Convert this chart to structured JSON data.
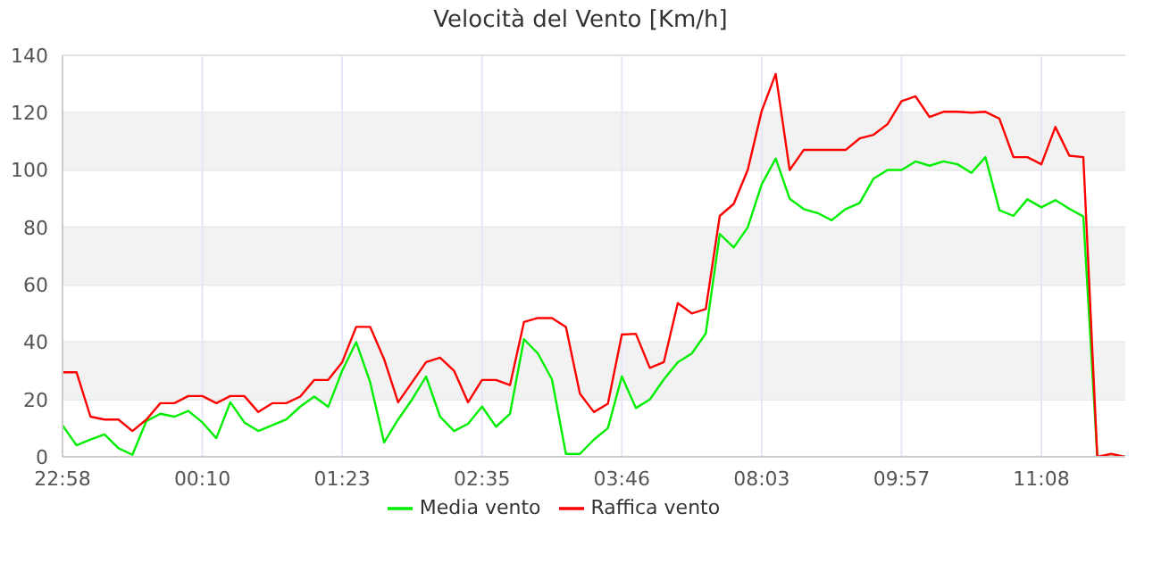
{
  "chart_data": {
    "type": "line",
    "title": "Velocità del Vento [Km/h]",
    "categories": [
      "22:58",
      null,
      null,
      null,
      null,
      null,
      null,
      null,
      null,
      null,
      "00:10",
      null,
      null,
      null,
      null,
      null,
      null,
      null,
      null,
      null,
      "01:23",
      null,
      null,
      null,
      null,
      null,
      null,
      null,
      null,
      null,
      "02:35",
      null,
      null,
      null,
      null,
      null,
      null,
      null,
      null,
      null,
      "03:46",
      null,
      null,
      null,
      null,
      null,
      null,
      null,
      null,
      null,
      "08:03",
      null,
      null,
      null,
      null,
      null,
      null,
      null,
      null,
      null,
      "09:57",
      null,
      null,
      null,
      null,
      null,
      null,
      null,
      null,
      null,
      "11:08",
      null,
      null,
      null,
      null,
      null,
      null
    ],
    "series": [
      {
        "name": "Media vento",
        "color": "#00ee00",
        "values": [
          11,
          4,
          6,
          7.8,
          3,
          0.7,
          12.5,
          15,
          14,
          16,
          12,
          6.5,
          19,
          12,
          9,
          11,
          13,
          17.5,
          21,
          17.4,
          30,
          40,
          26,
          5,
          13,
          20,
          28,
          14,
          9,
          11.5,
          17.5,
          10.5,
          15,
          41,
          36,
          27,
          1,
          1,
          6,
          10,
          28,
          17,
          20,
          27,
          33,
          36,
          43,
          77.7,
          73,
          80,
          95,
          104,
          90,
          86.4,
          85,
          82.5,
          86.4,
          88.5,
          97,
          100,
          100,
          103,
          101.5,
          103,
          102,
          99,
          104.5,
          86,
          84,
          89.8,
          87,
          89.5,
          86.5,
          83.8,
          0,
          0,
          0
        ]
      },
      {
        "name": "Raffica vento",
        "color": "#ff0000",
        "values": [
          29.5,
          29.5,
          14,
          13,
          13,
          9,
          13,
          18.7,
          18.7,
          21.2,
          21.2,
          18.7,
          21.2,
          21.2,
          15.6,
          18.7,
          18.7,
          21,
          26.8,
          26.8,
          33,
          45.3,
          45.3,
          34,
          19,
          26,
          33,
          34.6,
          30,
          19,
          26.8,
          26.8,
          25,
          47,
          48.4,
          48.4,
          45.3,
          22,
          15.6,
          18.5,
          42.6,
          42.9,
          31,
          33,
          53.6,
          50,
          51.5,
          84,
          88.2,
          100,
          120.6,
          133.5,
          100,
          107,
          107,
          107,
          107,
          111,
          112.3,
          116,
          124,
          125.7,
          118.5,
          120.3,
          120.3,
          120,
          120.3,
          117.9,
          104.5,
          104.5,
          102,
          115,
          105,
          104.5,
          0,
          1,
          0
        ]
      }
    ],
    "ylim": [
      0,
      140
    ],
    "yticks": [
      0,
      20,
      40,
      60,
      80,
      100,
      120,
      140
    ],
    "grid": true,
    "legend": "bottom",
    "bands": [
      {
        "axis": "y",
        "from": 20,
        "to": 40,
        "color": "#f2f2f2"
      },
      {
        "axis": "y",
        "from": 60,
        "to": 80,
        "color": "#f2f2f2"
      },
      {
        "axis": "y",
        "from": 100,
        "to": 120,
        "color": "#f2f2f2"
      }
    ]
  }
}
